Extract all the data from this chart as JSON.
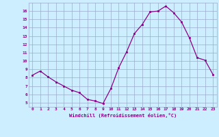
{
  "x": [
    0,
    1,
    2,
    3,
    4,
    5,
    6,
    7,
    8,
    9,
    10,
    11,
    12,
    13,
    14,
    15,
    16,
    17,
    18,
    19,
    20,
    21,
    22,
    23
  ],
  "y": [
    8.3,
    8.8,
    8.1,
    7.5,
    7.0,
    6.5,
    6.2,
    5.4,
    5.2,
    4.9,
    6.7,
    9.2,
    11.1,
    13.3,
    14.4,
    15.9,
    16.0,
    16.6,
    15.8,
    14.7,
    12.8,
    10.4,
    10.1,
    8.4
  ],
  "xlabel": "Windchill (Refroidissement éolien,°C)",
  "xlim": [
    -0.5,
    23.5
  ],
  "ylim": [
    4.5,
    17.0
  ],
  "yticks": [
    5,
    6,
    7,
    8,
    9,
    10,
    11,
    12,
    13,
    14,
    15,
    16
  ],
  "xticks": [
    0,
    1,
    2,
    3,
    4,
    5,
    6,
    7,
    8,
    9,
    10,
    11,
    12,
    13,
    14,
    15,
    16,
    17,
    18,
    19,
    20,
    21,
    22,
    23
  ],
  "line_color": "#880088",
  "marker_color": "#880088",
  "bg_color": "#cceeff",
  "grid_color": "#99aacc",
  "tick_color": "#880088",
  "xlabel_color": "#880088"
}
